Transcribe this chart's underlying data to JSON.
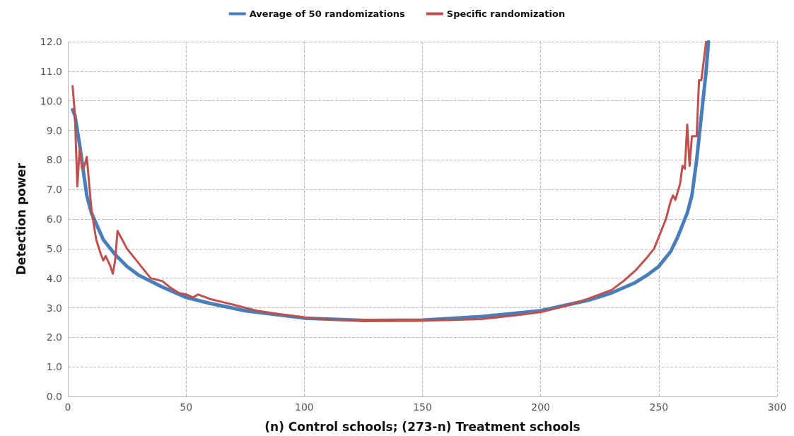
{
  "chart_data": {
    "type": "line",
    "xlabel": "(n) Control schools; (273-n) Treatment schools",
    "ylabel": "Detection power",
    "xlim": [
      0,
      300
    ],
    "xticks": [
      0,
      50,
      100,
      150,
      200,
      250,
      300
    ],
    "ylim": [
      0,
      12
    ],
    "yticks": [
      {
        "value": 0,
        "label": "0.0"
      },
      {
        "value": 1,
        "label": "1.0"
      },
      {
        "value": 2,
        "label": "2.0"
      },
      {
        "value": 3,
        "label": "3.0"
      },
      {
        "value": 4,
        "label": "4.0"
      },
      {
        "value": 5,
        "label": "5.0"
      },
      {
        "value": 6,
        "label": "6.0"
      },
      {
        "value": 7,
        "label": "7.0"
      },
      {
        "value": 8,
        "label": "8.0"
      },
      {
        "value": 9,
        "label": "9.0"
      },
      {
        "value": 10,
        "label": "10.0"
      },
      {
        "value": 11,
        "label": "11.0"
      },
      {
        "value": 12,
        "label": "12.0"
      }
    ],
    "grid": true,
    "legend": "top",
    "marker": "none",
    "line_style": "solid",
    "series": [
      {
        "name": "Average of 50 randomizations",
        "color": "#4a7ebb",
        "x": [
          2,
          3,
          5,
          8,
          10,
          15,
          20,
          25,
          30,
          40,
          50,
          60,
          75,
          100,
          125,
          150,
          175,
          200,
          220,
          230,
          240,
          245,
          250,
          255,
          258,
          262,
          264,
          266,
          268,
          270,
          271
        ],
        "values": [
          9.7,
          9.5,
          8.5,
          6.8,
          6.2,
          5.3,
          4.8,
          4.4,
          4.1,
          3.7,
          3.35,
          3.15,
          2.9,
          2.65,
          2.57,
          2.58,
          2.7,
          2.9,
          3.25,
          3.5,
          3.85,
          4.1,
          4.4,
          4.9,
          5.4,
          6.2,
          6.8,
          8.0,
          9.5,
          11.0,
          12.0
        ]
      },
      {
        "name": "Specific randomization",
        "color": "#c0504d",
        "x": [
          2,
          3,
          4,
          5,
          6,
          7,
          8,
          9,
          10,
          12,
          14,
          15,
          16,
          18,
          19,
          20,
          21,
          23,
          25,
          28,
          32,
          35,
          40,
          43,
          47,
          50,
          53,
          55,
          60,
          65,
          70,
          80,
          90,
          100,
          110,
          125,
          150,
          160,
          175,
          190,
          200,
          210,
          220,
          230,
          235,
          240,
          245,
          248,
          250,
          253,
          255,
          256,
          257,
          259,
          260,
          261,
          262,
          263,
          264,
          266,
          267,
          268,
          270
        ],
        "values": [
          10.5,
          9.5,
          7.1,
          8.4,
          7.7,
          7.8,
          8.1,
          7.2,
          6.3,
          5.3,
          4.8,
          4.6,
          4.75,
          4.4,
          4.15,
          4.6,
          5.6,
          5.3,
          5.0,
          4.7,
          4.3,
          4.0,
          3.9,
          3.7,
          3.5,
          3.45,
          3.35,
          3.45,
          3.3,
          3.2,
          3.1,
          2.9,
          2.78,
          2.68,
          2.6,
          2.57,
          2.57,
          2.58,
          2.62,
          2.75,
          2.85,
          3.05,
          3.3,
          3.6,
          3.9,
          4.25,
          4.7,
          5.0,
          5.4,
          6.0,
          6.6,
          6.8,
          6.65,
          7.2,
          7.8,
          7.7,
          9.2,
          7.8,
          8.8,
          8.8,
          10.7,
          10.7,
          12.0
        ]
      }
    ]
  }
}
